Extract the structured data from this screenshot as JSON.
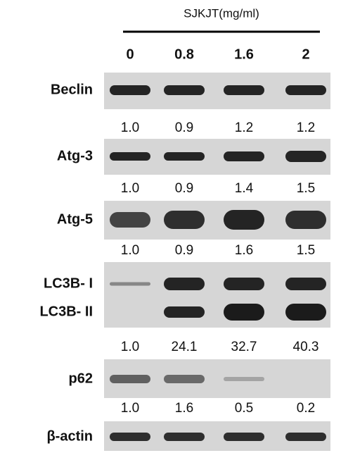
{
  "header": {
    "treatment": "SJKJT(mg/ml)",
    "doses": [
      "0",
      "0.8",
      "1.6",
      "2"
    ]
  },
  "blots": [
    {
      "labels": [
        "Beclin"
      ],
      "quantification": [
        "1.0",
        "0.9",
        "1.2",
        "1.2"
      ]
    },
    {
      "labels": [
        "Atg-3"
      ],
      "quantification": [
        "1.0",
        "0.9",
        "1.4",
        "1.5"
      ]
    },
    {
      "labels": [
        "Atg-5"
      ],
      "quantification": [
        "1.0",
        "0.9",
        "1.6",
        "1.5"
      ]
    },
    {
      "labels": [
        "LC3B- I",
        "LC3B- II"
      ],
      "quantification": [
        "1.0",
        "24.1",
        "32.7",
        "40.3"
      ]
    },
    {
      "labels": [
        "p62"
      ],
      "quantification": [
        "1.0",
        "1.6",
        "0.5",
        "0.2"
      ]
    },
    {
      "labels": [
        "β-actin"
      ]
    }
  ]
}
